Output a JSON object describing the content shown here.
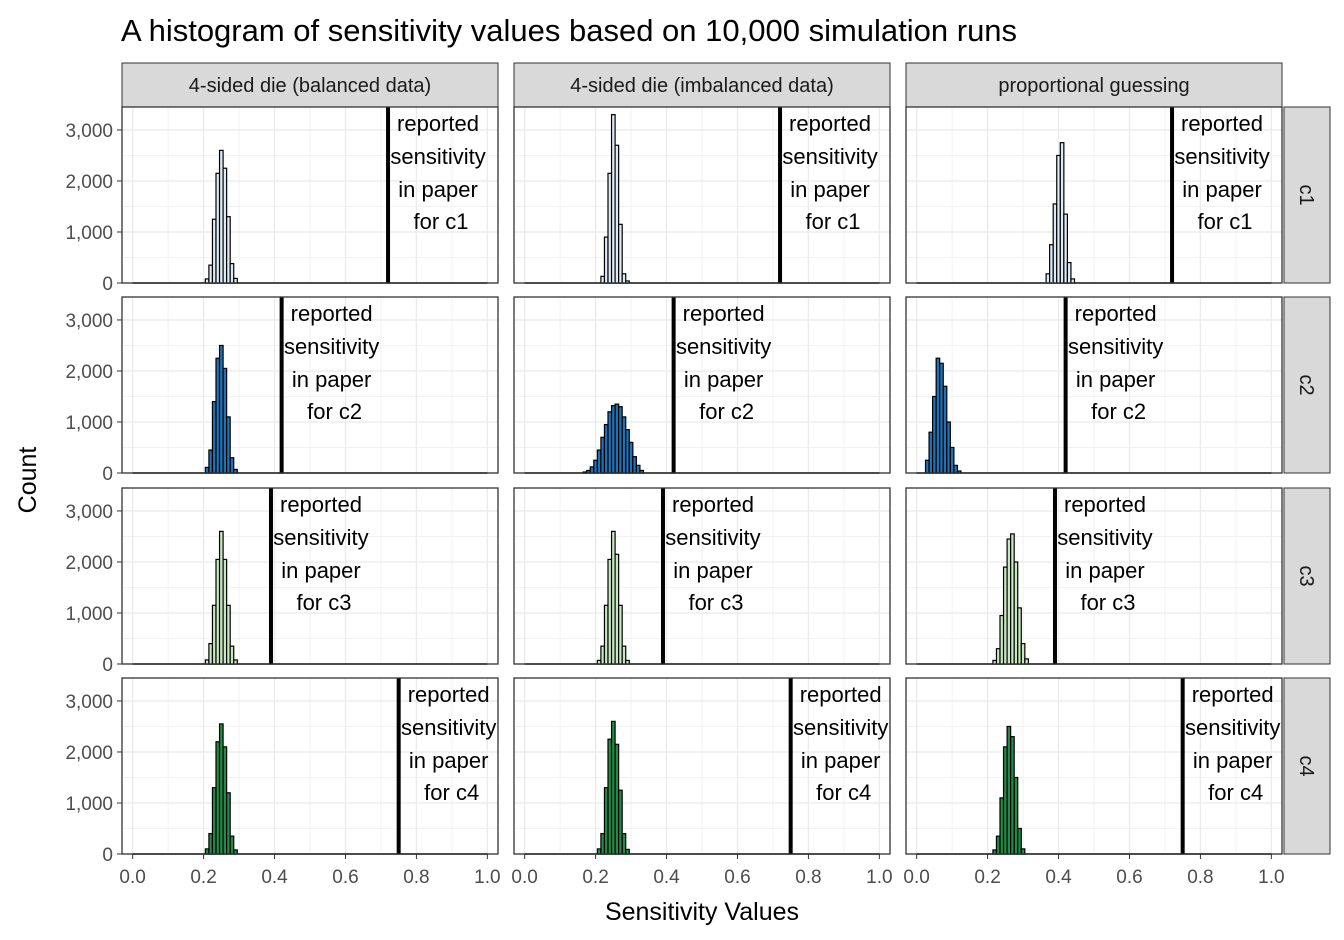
{
  "chart_data": {
    "type": "bar",
    "title": "A histogram of sensitivity values based on 10,000 simulation runs",
    "xlabel": "Sensitivity Values",
    "ylabel": "Count",
    "xlim": [
      -0.03,
      1.03
    ],
    "ylim": [
      0,
      3450
    ],
    "x_ticks": [
      {
        "value": 0.0,
        "label": "0.0"
      },
      {
        "value": 0.2,
        "label": "0.2"
      },
      {
        "value": 0.4,
        "label": "0.4"
      },
      {
        "value": 0.6,
        "label": "0.6"
      },
      {
        "value": 0.8,
        "label": "0.8"
      },
      {
        "value": 1.0,
        "label": "1.0"
      }
    ],
    "y_ticks": [
      {
        "value": 0,
        "label": "0"
      },
      {
        "value": 1000,
        "label": "1,000"
      },
      {
        "value": 2000,
        "label": "2,000"
      },
      {
        "value": 3000,
        "label": "3,000"
      }
    ],
    "grid": true,
    "legend": "none",
    "columns": [
      "4-sided die (balanced data)",
      "4-sided die (imbalanced data)",
      "proportional guessing"
    ],
    "rows": [
      {
        "label": "c1",
        "fill": "#deebf7",
        "annotation": [
          "reported",
          "sensitivity",
          "in paper",
          "for c1"
        ],
        "reported_sensitivity": 0.72,
        "bin_width": 0.01,
        "histograms": [
          {
            "column": 0,
            "bins": [
              0.21,
              0.22,
              0.23,
              0.24,
              0.25,
              0.26,
              0.27,
              0.28,
              0.29
            ],
            "counts": [
              80,
              350,
              1250,
              2150,
              2600,
              2250,
              1300,
              380,
              90
            ]
          },
          {
            "column": 1,
            "bins": [
              0.22,
              0.23,
              0.24,
              0.25,
              0.26,
              0.27,
              0.28,
              0.29
            ],
            "counts": [
              130,
              900,
              2150,
              3300,
              2700,
              1150,
              180,
              40
            ]
          },
          {
            "column": 2,
            "bins": [
              0.37,
              0.38,
              0.39,
              0.4,
              0.41,
              0.42,
              0.43,
              0.44
            ],
            "counts": [
              180,
              750,
              1550,
              2500,
              2750,
              1350,
              400,
              80
            ]
          }
        ]
      },
      {
        "label": "c2",
        "fill": "#2171b5",
        "annotation": [
          "reported",
          "sensitivity",
          "in paper",
          "for c2"
        ],
        "reported_sensitivity": 0.42,
        "bin_width": 0.01,
        "histograms": [
          {
            "column": 0,
            "bins": [
              0.21,
              0.22,
              0.23,
              0.24,
              0.25,
              0.26,
              0.27,
              0.28,
              0.29
            ],
            "counts": [
              110,
              450,
              1400,
              2250,
              2500,
              2050,
              1100,
              300,
              70
            ]
          },
          {
            "column": 1,
            "bins": [
              0.17,
              0.18,
              0.19,
              0.2,
              0.21,
              0.22,
              0.23,
              0.24,
              0.25,
              0.26,
              0.27,
              0.28,
              0.29,
              0.3,
              0.31,
              0.32,
              0.33
            ],
            "counts": [
              20,
              50,
              120,
              250,
              450,
              700,
              950,
              1200,
              1320,
              1350,
              1300,
              1100,
              850,
              600,
              320,
              150,
              50
            ]
          },
          {
            "column": 2,
            "bins": [
              0.03,
              0.04,
              0.05,
              0.06,
              0.07,
              0.08,
              0.09,
              0.1,
              0.11,
              0.12
            ],
            "counts": [
              250,
              800,
              1500,
              2250,
              2150,
              1700,
              1000,
              500,
              150,
              40
            ]
          }
        ]
      },
      {
        "label": "c3",
        "fill": "#c7e9c0",
        "annotation": [
          "reported",
          "sensitivity",
          "in paper",
          "for c3"
        ],
        "reported_sensitivity": 0.39,
        "bin_width": 0.01,
        "histograms": [
          {
            "column": 0,
            "bins": [
              0.21,
              0.22,
              0.23,
              0.24,
              0.25,
              0.26,
              0.27,
              0.28,
              0.29
            ],
            "counts": [
              80,
              400,
              1150,
              2050,
              2600,
              2050,
              1150,
              350,
              80
            ]
          },
          {
            "column": 1,
            "bins": [
              0.21,
              0.22,
              0.23,
              0.24,
              0.25,
              0.26,
              0.27,
              0.28,
              0.29
            ],
            "counts": [
              70,
              350,
              1150,
              2050,
              2600,
              2150,
              1150,
              350,
              70
            ]
          },
          {
            "column": 2,
            "bins": [
              0.22,
              0.23,
              0.24,
              0.25,
              0.26,
              0.27,
              0.28,
              0.29,
              0.3,
              0.31
            ],
            "counts": [
              70,
              300,
              950,
              1900,
              2450,
              2550,
              2000,
              1100,
              400,
              100
            ]
          }
        ]
      },
      {
        "label": "c4",
        "fill": "#238b45",
        "annotation": [
          "reported",
          "sensitivity",
          "in paper",
          "for c4"
        ],
        "reported_sensitivity": 0.75,
        "bin_width": 0.01,
        "histograms": [
          {
            "column": 0,
            "bins": [
              0.21,
              0.22,
              0.23,
              0.24,
              0.25,
              0.26,
              0.27,
              0.28,
              0.29
            ],
            "counts": [
              100,
              400,
              1300,
              2200,
              2550,
              2100,
              1200,
              350,
              80
            ]
          },
          {
            "column": 1,
            "bins": [
              0.21,
              0.22,
              0.23,
              0.24,
              0.25,
              0.26,
              0.27,
              0.28,
              0.29
            ],
            "counts": [
              100,
              400,
              1300,
              2250,
              2600,
              2150,
              1250,
              400,
              90
            ]
          },
          {
            "column": 2,
            "bins": [
              0.22,
              0.23,
              0.24,
              0.25,
              0.26,
              0.27,
              0.28,
              0.29,
              0.3
            ],
            "counts": [
              80,
              350,
              1100,
              2100,
              2500,
              2300,
              1500,
              500,
              100
            ]
          }
        ]
      }
    ]
  }
}
